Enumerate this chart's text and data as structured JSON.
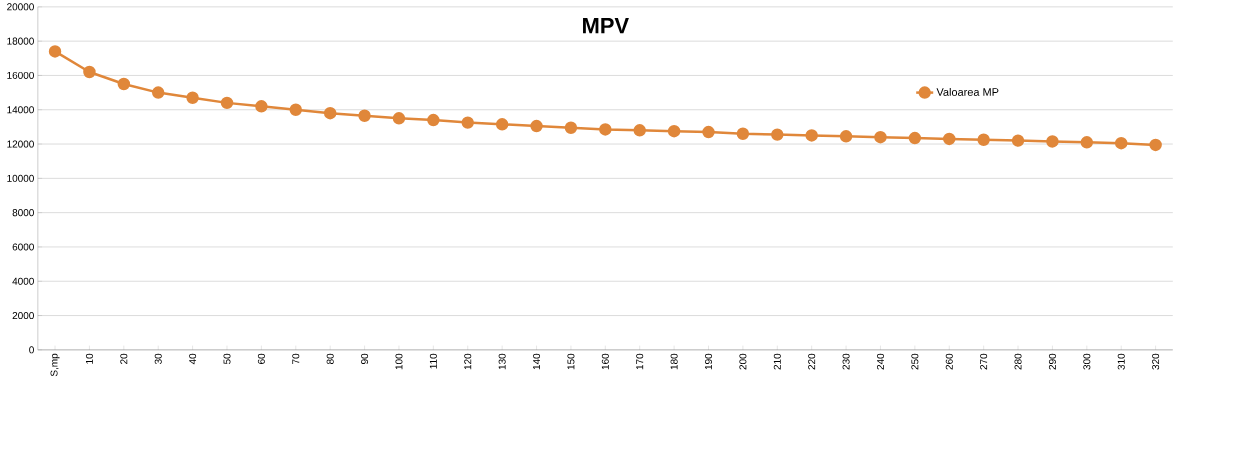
{
  "chart_data": {
    "type": "line",
    "title": "MPV",
    "categories": [
      "S,mp",
      "10",
      "20",
      "30",
      "40",
      "50",
      "60",
      "70",
      "80",
      "90",
      "100",
      "110",
      "120",
      "130",
      "140",
      "150",
      "160",
      "170",
      "180",
      "190",
      "200",
      "210",
      "220",
      "230",
      "240",
      "250",
      "260",
      "270",
      "280",
      "290",
      "300",
      "310",
      "320"
    ],
    "series": [
      {
        "name": "Valoarea MP",
        "color": "#e0873a",
        "values": [
          17400,
          16200,
          15500,
          15000,
          14700,
          14400,
          14200,
          14000,
          13800,
          13650,
          13500,
          13400,
          13250,
          13150,
          13050,
          12950,
          12850,
          12800,
          12750,
          12700,
          12600,
          12550,
          12500,
          12450,
          12400,
          12350,
          12300,
          12250,
          12200,
          12150,
          12100,
          12050,
          11950
        ]
      }
    ],
    "ylim": [
      0,
      20000
    ],
    "yticks": [
      0,
      2000,
      4000,
      6000,
      8000,
      10000,
      12000,
      14000,
      16000,
      18000,
      20000
    ],
    "grid": "y",
    "legend": "right",
    "marker": "circle",
    "line_style": "solid"
  }
}
